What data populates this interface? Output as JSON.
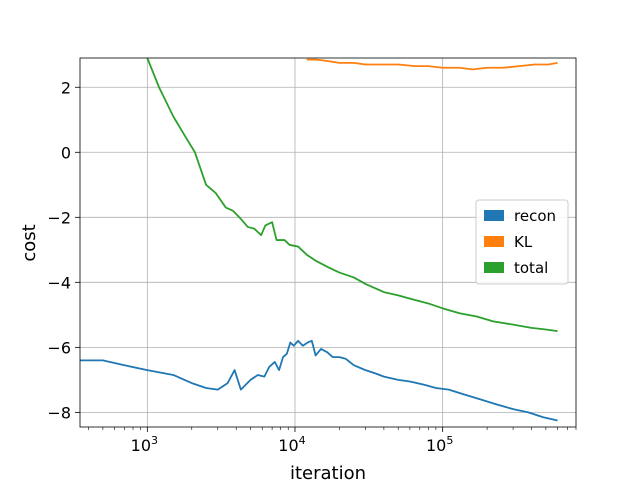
{
  "chart_data": {
    "type": "line",
    "title": "",
    "xlabel": "iteration",
    "ylabel": "cost",
    "xscale": "log",
    "xlim": [
      350,
      800000
    ],
    "ylim": [
      -8.45,
      2.9
    ],
    "x_ticks": [
      {
        "base": "10",
        "exp": "3",
        "value": 1000
      },
      {
        "base": "10",
        "exp": "4",
        "value": 10000
      },
      {
        "base": "10",
        "exp": "5",
        "value": 100000
      }
    ],
    "y_ticks": [
      {
        "label": "2",
        "value": 2
      },
      {
        "label": "0",
        "value": 0
      },
      {
        "label": "−2",
        "value": -2
      },
      {
        "label": "−4",
        "value": -4
      },
      {
        "label": "−6",
        "value": -6
      },
      {
        "label": "−8",
        "value": -8
      }
    ],
    "grid": true,
    "legend_position": "center-right",
    "series": [
      {
        "name": "recon",
        "color": "#1f77b4",
        "points": [
          [
            350,
            -6.4
          ],
          [
            500,
            -6.4
          ],
          [
            700,
            -6.55
          ],
          [
            1000,
            -6.7
          ],
          [
            1500,
            -6.85
          ],
          [
            2000,
            -7.1
          ],
          [
            2500,
            -7.25
          ],
          [
            3000,
            -7.3
          ],
          [
            3500,
            -7.1
          ],
          [
            3900,
            -6.7
          ],
          [
            4300,
            -7.3
          ],
          [
            5000,
            -7.0
          ],
          [
            5600,
            -6.85
          ],
          [
            6200,
            -6.9
          ],
          [
            6700,
            -6.6
          ],
          [
            7300,
            -6.45
          ],
          [
            7800,
            -6.7
          ],
          [
            8300,
            -6.3
          ],
          [
            8800,
            -6.2
          ],
          [
            9300,
            -5.85
          ],
          [
            9800,
            -5.95
          ],
          [
            10500,
            -5.8
          ],
          [
            11300,
            -5.95
          ],
          [
            12200,
            -5.85
          ],
          [
            13000,
            -5.8
          ],
          [
            13800,
            -6.25
          ],
          [
            15000,
            -6.05
          ],
          [
            16500,
            -6.15
          ],
          [
            18000,
            -6.3
          ],
          [
            20000,
            -6.3
          ],
          [
            22000,
            -6.35
          ],
          [
            25000,
            -6.55
          ],
          [
            30000,
            -6.7
          ],
          [
            35000,
            -6.8
          ],
          [
            40000,
            -6.9
          ],
          [
            50000,
            -7.0
          ],
          [
            60000,
            -7.05
          ],
          [
            75000,
            -7.15
          ],
          [
            90000,
            -7.25
          ],
          [
            110000,
            -7.3
          ],
          [
            140000,
            -7.45
          ],
          [
            180000,
            -7.6
          ],
          [
            230000,
            -7.75
          ],
          [
            300000,
            -7.9
          ],
          [
            380000,
            -8.0
          ],
          [
            480000,
            -8.15
          ],
          [
            600000,
            -8.25
          ]
        ]
      },
      {
        "name": "KL",
        "color": "#ff7f0e",
        "points": [
          [
            12000,
            2.85
          ],
          [
            14000,
            2.85
          ],
          [
            17000,
            2.8
          ],
          [
            20000,
            2.75
          ],
          [
            25000,
            2.75
          ],
          [
            30000,
            2.7
          ],
          [
            40000,
            2.7
          ],
          [
            50000,
            2.7
          ],
          [
            65000,
            2.65
          ],
          [
            80000,
            2.65
          ],
          [
            100000,
            2.6
          ],
          [
            130000,
            2.6
          ],
          [
            160000,
            2.55
          ],
          [
            200000,
            2.6
          ],
          [
            260000,
            2.6
          ],
          [
            330000,
            2.65
          ],
          [
            420000,
            2.7
          ],
          [
            520000,
            2.7
          ],
          [
            600000,
            2.75
          ]
        ]
      },
      {
        "name": "total",
        "color": "#2ca02c",
        "points": [
          [
            1000,
            2.9
          ],
          [
            1200,
            2.0
          ],
          [
            1500,
            1.1
          ],
          [
            1800,
            0.5
          ],
          [
            2100,
            0.0
          ],
          [
            2500,
            -1.0
          ],
          [
            2900,
            -1.25
          ],
          [
            3400,
            -1.7
          ],
          [
            3800,
            -1.8
          ],
          [
            4300,
            -2.05
          ],
          [
            4800,
            -2.3
          ],
          [
            5300,
            -2.35
          ],
          [
            5900,
            -2.55
          ],
          [
            6300,
            -2.25
          ],
          [
            7000,
            -2.15
          ],
          [
            7500,
            -2.7
          ],
          [
            8500,
            -2.7
          ],
          [
            9200,
            -2.85
          ],
          [
            10500,
            -2.9
          ],
          [
            12000,
            -3.15
          ],
          [
            14000,
            -3.35
          ],
          [
            17000,
            -3.55
          ],
          [
            20000,
            -3.7
          ],
          [
            25000,
            -3.85
          ],
          [
            30000,
            -4.05
          ],
          [
            40000,
            -4.3
          ],
          [
            50000,
            -4.4
          ],
          [
            60000,
            -4.5
          ],
          [
            80000,
            -4.65
          ],
          [
            100000,
            -4.8
          ],
          [
            130000,
            -4.95
          ],
          [
            170000,
            -5.05
          ],
          [
            220000,
            -5.2
          ],
          [
            300000,
            -5.3
          ],
          [
            400000,
            -5.4
          ],
          [
            500000,
            -5.45
          ],
          [
            600000,
            -5.5
          ]
        ]
      }
    ]
  }
}
